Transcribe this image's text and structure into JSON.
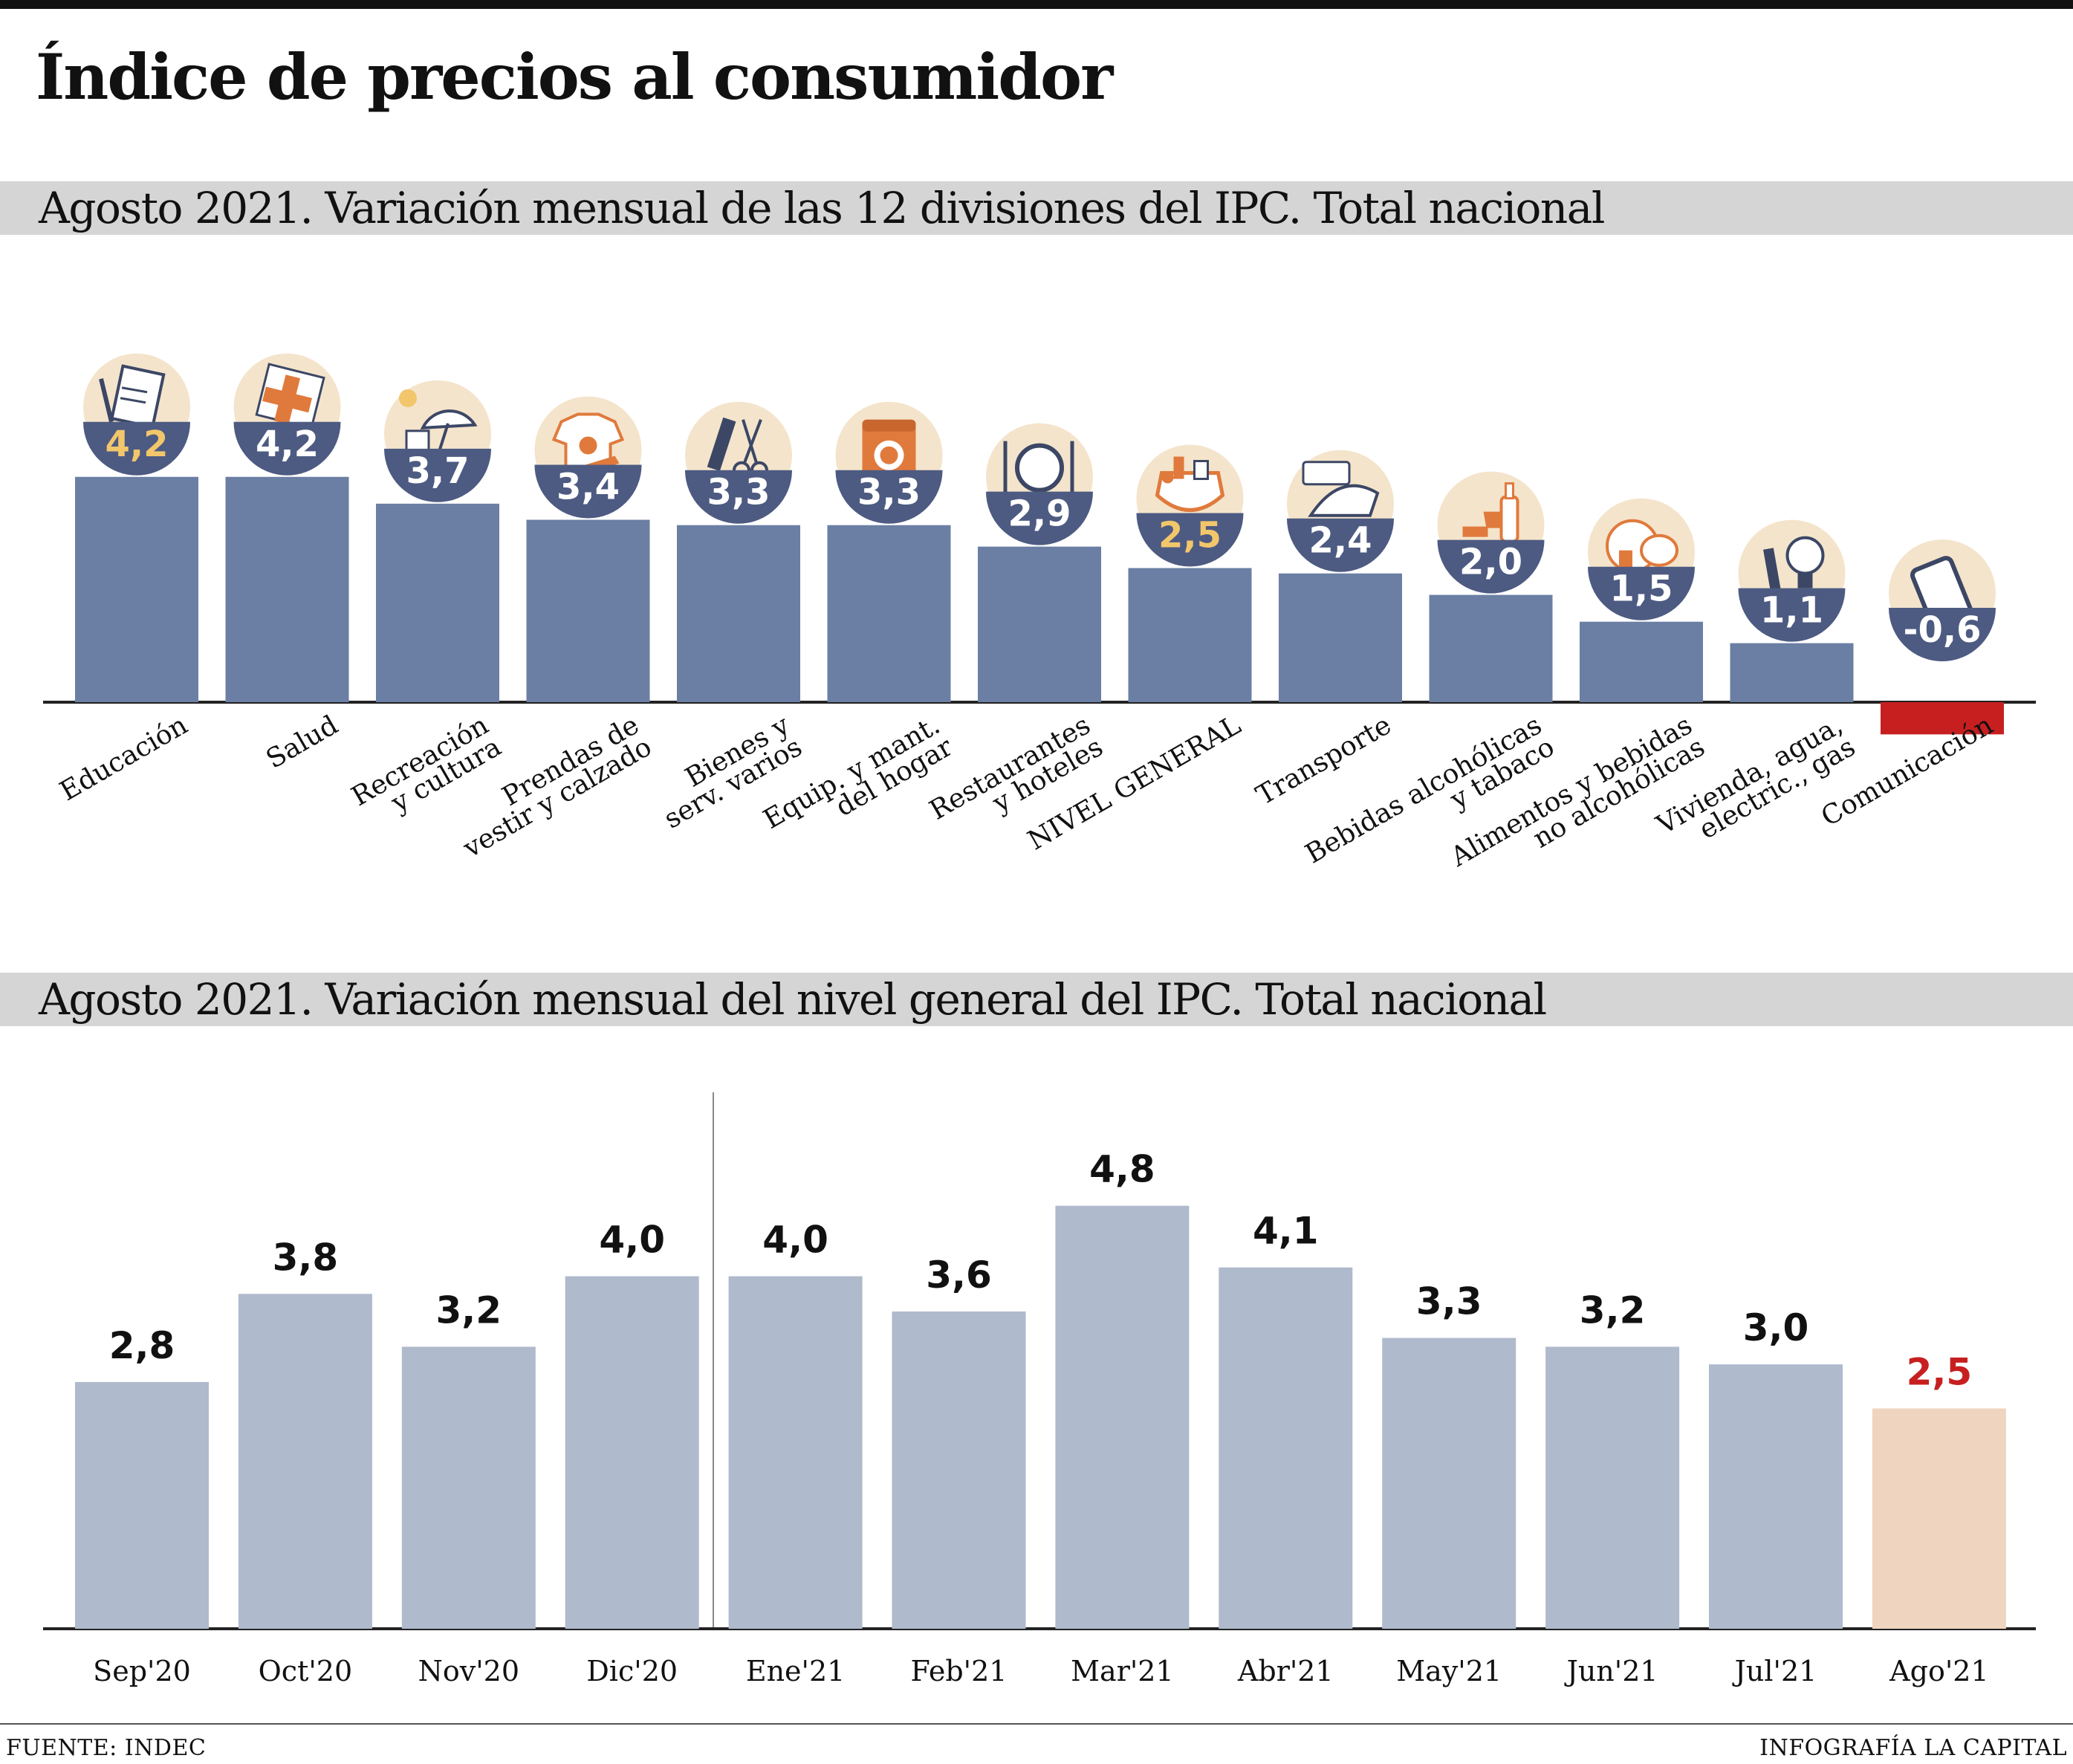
{
  "title": "Índice de precios al consumidor",
  "footer": {
    "source": "FUENTE: INDEC",
    "credit": "INFOGRAFÍA LA CAPITAL"
  },
  "colors": {
    "bar_main": "#6b7fa5",
    "bar_negative": "#c71f1f",
    "bubble": "#4d5a82",
    "bubble_halo": "#f4e4cc",
    "highlight_value": "#f2c66a",
    "bar_light": "#afbacc",
    "bar_current": "#efd5bf",
    "current_value": "#c71f1f",
    "icon_orange": "#e07a3c"
  },
  "chart_data": [
    {
      "type": "bar",
      "title": "Agosto 2021. Variación mensual de las 12 divisiones del IPC. Total nacional",
      "categories": [
        [
          "Educación"
        ],
        [
          "Salud"
        ],
        [
          "Recreación",
          "y cultura"
        ],
        [
          "Prendas de",
          "vestir y calzado"
        ],
        [
          "Bienes y",
          "serv. varios"
        ],
        [
          "Equip. y mant.",
          "del hogar"
        ],
        [
          "Restaurantes",
          "y hoteles"
        ],
        [
          "NIVEL GENERAL"
        ],
        [
          "Transporte"
        ],
        [
          "Bebidas alcohólicas",
          "y tabaco"
        ],
        [
          "Alimentos y bebidas",
          "no alcohólicas"
        ],
        [
          "Vivienda, agua,",
          "electric., gas"
        ],
        [
          "Comunicación"
        ]
      ],
      "values": [
        4.2,
        4.2,
        3.7,
        3.4,
        3.3,
        3.3,
        2.9,
        2.5,
        2.4,
        2.0,
        1.5,
        1.1,
        -0.6
      ],
      "labels": [
        "4,2",
        "4,2",
        "3,7",
        "3,4",
        "3,3",
        "3,3",
        "2,9",
        "2,5",
        "2,4",
        "2,0",
        "1,5",
        "1,1",
        "-0,6"
      ],
      "highlight": [
        0,
        7
      ],
      "icons": [
        "school-supplies-icon",
        "health-cross-icon",
        "leisure-umbrella-icon",
        "clothing-icon",
        "comb-scissors-icon",
        "washing-machine-icon",
        "plate-cutlery-icon",
        "shopping-bag-icon",
        "bus-ticket-icon",
        "wine-bottle-icon",
        "chicken-food-icon",
        "key-bulb-icon",
        "smartphone-icon"
      ],
      "ylim": [
        -0.6,
        4.2
      ]
    },
    {
      "type": "bar",
      "title": "Agosto 2021. Variación mensual del nivel general del IPC. Total nacional",
      "categories": [
        "Sep'20",
        "Oct'20",
        "Nov'20",
        "Dic'20",
        "Ene'21",
        "Feb'21",
        "Mar'21",
        "Abr'21",
        "May'21",
        "Jun'21",
        "Jul'21",
        "Ago'21"
      ],
      "values": [
        2.8,
        3.8,
        3.2,
        4.0,
        4.0,
        3.6,
        4.8,
        4.1,
        3.3,
        3.2,
        3.0,
        2.5
      ],
      "labels": [
        "2,8",
        "3,8",
        "3,2",
        "4,0",
        "4,0",
        "3,6",
        "4,8",
        "4,1",
        "3,3",
        "3,2",
        "3,0",
        "2,5"
      ],
      "highlight": [
        11
      ],
      "ylim": [
        0,
        4.8
      ]
    }
  ]
}
